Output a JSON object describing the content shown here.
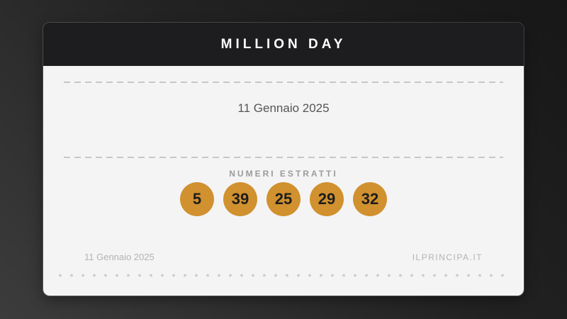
{
  "card": {
    "title": "MILLION DAY",
    "draw_date": "11 Gennaio 2025",
    "numbers_section": {
      "label": "NUMERI ESTRATTI",
      "numbers": [
        "5",
        "39",
        "25",
        "29",
        "32"
      ]
    },
    "footer": {
      "date": "11 Gennaio 2025",
      "site": "ILPRINCIPA.IT"
    },
    "colors": {
      "ball_background": "#d0912e",
      "ball_text": "#1d1d1d",
      "header_background": "#1d1d1f",
      "body_background": "#f4f4f5"
    }
  }
}
